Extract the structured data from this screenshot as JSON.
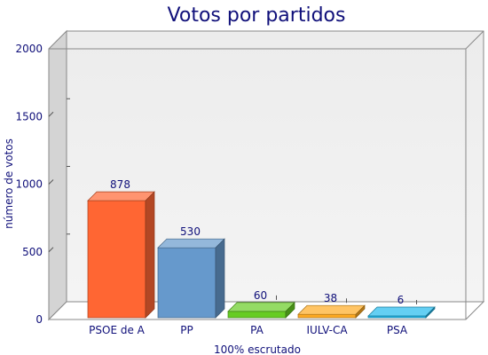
{
  "chart_data": {
    "type": "bar",
    "title": "Votos por partidos",
    "xlabel": "100% escrutado",
    "ylabel": "número de votos",
    "ylim": [
      0,
      2000
    ],
    "yticks": [
      0,
      500,
      1000,
      1500,
      2000
    ],
    "categories": [
      "PSOE de A",
      "PP",
      "PA",
      "IULV-CA",
      "PSA"
    ],
    "values": [
      878,
      530,
      60,
      38,
      6
    ],
    "colors": [
      "#ff6633",
      "#6699cc",
      "#66cc22",
      "#ffaa22",
      "#22bbee"
    ],
    "grid": false,
    "legend": "none"
  }
}
